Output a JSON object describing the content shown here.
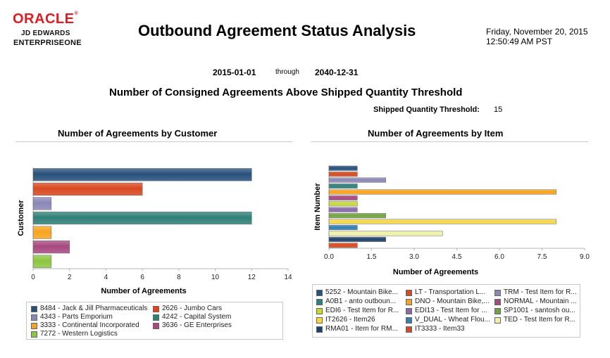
{
  "header": {
    "logo_oracle": "ORACLE",
    "logo_jde": "JD EDWARDS",
    "logo_e1": "ENTERPRISEONE",
    "title": "Outbound Agreement Status Analysis",
    "date_line1": "Friday, November 20, 2015",
    "date_line2": "12:50:49 AM PST"
  },
  "range": {
    "from": "2015-01-01",
    "through_label": "through",
    "to": "2040-12-31"
  },
  "subtitle": "Number of Consigned Agreements Above Shipped Quantity Threshold",
  "threshold": {
    "label": "Shipped Quantity Threshold:",
    "value": "15"
  },
  "chart_data": [
    {
      "type": "bar",
      "orientation": "horizontal",
      "title": "Number of Agreements by Customer",
      "xlabel": "Number of Agreements",
      "ylabel": "Customer",
      "xlim": [
        0,
        14
      ],
      "xticks": [
        "0",
        "2",
        "4",
        "6",
        "8",
        "10",
        "12",
        "14"
      ],
      "grid": false,
      "legend_position": "bottom",
      "series": [
        {
          "name": "8484 - Jack & Jill Pharmaceuticals",
          "value": 12,
          "color": "#27507c"
        },
        {
          "name": "2626 - Jumbo Cars",
          "value": 6,
          "color": "#d8491f"
        },
        {
          "name": "4343 - Parts Emporium",
          "value": 1,
          "color": "#8a87b6"
        },
        {
          "name": "4242 - Capital System",
          "value": 12,
          "color": "#2f8078"
        },
        {
          "name": "3333 - Continental Incorporated",
          "value": 1,
          "color": "#f7a21d"
        },
        {
          "name": "3636 - GE Enterprises",
          "value": 2,
          "color": "#a8487f"
        },
        {
          "name": "7272 - Western Logistics",
          "value": 1,
          "color": "#8cc63f"
        }
      ]
    },
    {
      "type": "bar",
      "orientation": "horizontal",
      "title": "Number of Agreements by Item",
      "xlabel": "Number of Agreements",
      "ylabel": "Item Number",
      "xlim": [
        0,
        9
      ],
      "xticks": [
        "0.0",
        "1.5",
        "3.0",
        "4.5",
        "6.0",
        "7.5",
        "9.0"
      ],
      "grid": false,
      "legend_position": "bottom",
      "series": [
        {
          "name": "5252 - Mountain Bike...",
          "value": 1,
          "color": "#27507c"
        },
        {
          "name": "LT - Transportation L...",
          "value": 1,
          "color": "#d8491f"
        },
        {
          "name": "TRM - Test Item for R...",
          "value": 2,
          "color": "#8a87b6"
        },
        {
          "name": "A0B1 - anto outboun...",
          "value": 1,
          "color": "#2f8078"
        },
        {
          "name": "DNO - Mountain Bike,...",
          "value": 8,
          "color": "#f7a21d"
        },
        {
          "name": "NORMAL - Mountain ...",
          "value": 1,
          "color": "#a8487f"
        },
        {
          "name": "EDI6 - Test Item for R...",
          "value": 1,
          "color": "#c5d93c"
        },
        {
          "name": "EDI13 - Test Item for ...",
          "value": 1,
          "color": "#8a68ad"
        },
        {
          "name": "SP1001 - santosh ou...",
          "value": 2,
          "color": "#72a33f"
        },
        {
          "name": "IT2626 - Item26",
          "value": 8,
          "color": "#f5d64a"
        },
        {
          "name": "V_DUAL - Wheat Flou...",
          "value": 1,
          "color": "#2f7fb2"
        },
        {
          "name": "TED - Test Item for R...",
          "value": 4,
          "color": "#eef0a6"
        },
        {
          "name": "RMA01 - Item for RM...",
          "value": 2,
          "color": "#1e4168"
        },
        {
          "name": "IT3333 - Item33",
          "value": 1,
          "color": "#d8491f"
        }
      ]
    }
  ]
}
